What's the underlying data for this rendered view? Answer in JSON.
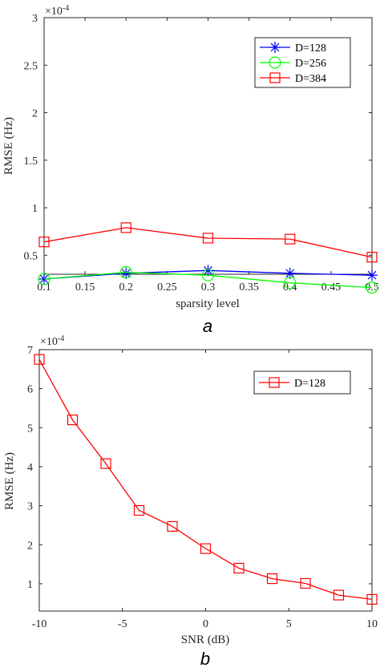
{
  "chart_data": [
    {
      "type": "line",
      "caption": "a",
      "xlabel": "sparsity level",
      "ylabel": "RMSE (Hz)",
      "exponent": "×10",
      "exponent_power": "-4",
      "xlim": [
        0.1,
        0.5
      ],
      "ylim": [
        0.3,
        3
      ],
      "xticks": [
        0.1,
        0.15,
        0.2,
        0.25,
        0.3,
        0.35,
        0.4,
        0.45,
        0.5
      ],
      "xtick_labels": [
        "0.1",
        "0.15",
        "0.2",
        "0.25",
        "0.3",
        "0.35",
        "0.4",
        "0.45",
        "0.5"
      ],
      "yticks": [
        0.5,
        1,
        1.5,
        2,
        2.5,
        3
      ],
      "ytick_labels": [
        "0.5",
        "1",
        "1.5",
        "2",
        "2.5",
        "3"
      ],
      "legend_position": "top-right",
      "x": [
        0.1,
        0.2,
        0.3,
        0.4,
        0.5
      ],
      "series": [
        {
          "name": "D=128",
          "color": "#0000ff",
          "marker": "asterisk",
          "values": [
            0.25,
            0.31,
            0.34,
            0.31,
            0.29
          ]
        },
        {
          "name": "D=256",
          "color": "#00ff00",
          "marker": "circle",
          "values": [
            0.25,
            0.32,
            0.29,
            0.21,
            0.16
          ]
        },
        {
          "name": "D=384",
          "color": "#ff0000",
          "marker": "square",
          "values": [
            0.64,
            0.79,
            0.68,
            0.67,
            0.48
          ]
        }
      ]
    },
    {
      "type": "line",
      "caption": "b",
      "xlabel": "SNR (dB)",
      "ylabel": "RMSE (Hz)",
      "exponent": "×10",
      "exponent_power": "-4",
      "xlim": [
        -10,
        10
      ],
      "ylim": [
        0.3,
        7
      ],
      "xticks": [
        -10,
        -5,
        0,
        5,
        10
      ],
      "xtick_labels": [
        "-10",
        "-5",
        "0",
        "5",
        "10"
      ],
      "yticks": [
        1,
        2,
        3,
        4,
        5,
        6,
        7
      ],
      "ytick_labels": [
        "1",
        "2",
        "3",
        "4",
        "5",
        "6",
        "7"
      ],
      "legend_position": "top-right",
      "x": [
        -10,
        -8,
        -6,
        -4,
        -2,
        0,
        2,
        4,
        6,
        8,
        10
      ],
      "series": [
        {
          "name": "D=128",
          "color": "#ff0000",
          "marker": "square",
          "values": [
            6.75,
            5.2,
            4.08,
            2.88,
            2.47,
            1.9,
            1.4,
            1.13,
            1.01,
            0.71,
            0.6
          ]
        }
      ]
    }
  ]
}
